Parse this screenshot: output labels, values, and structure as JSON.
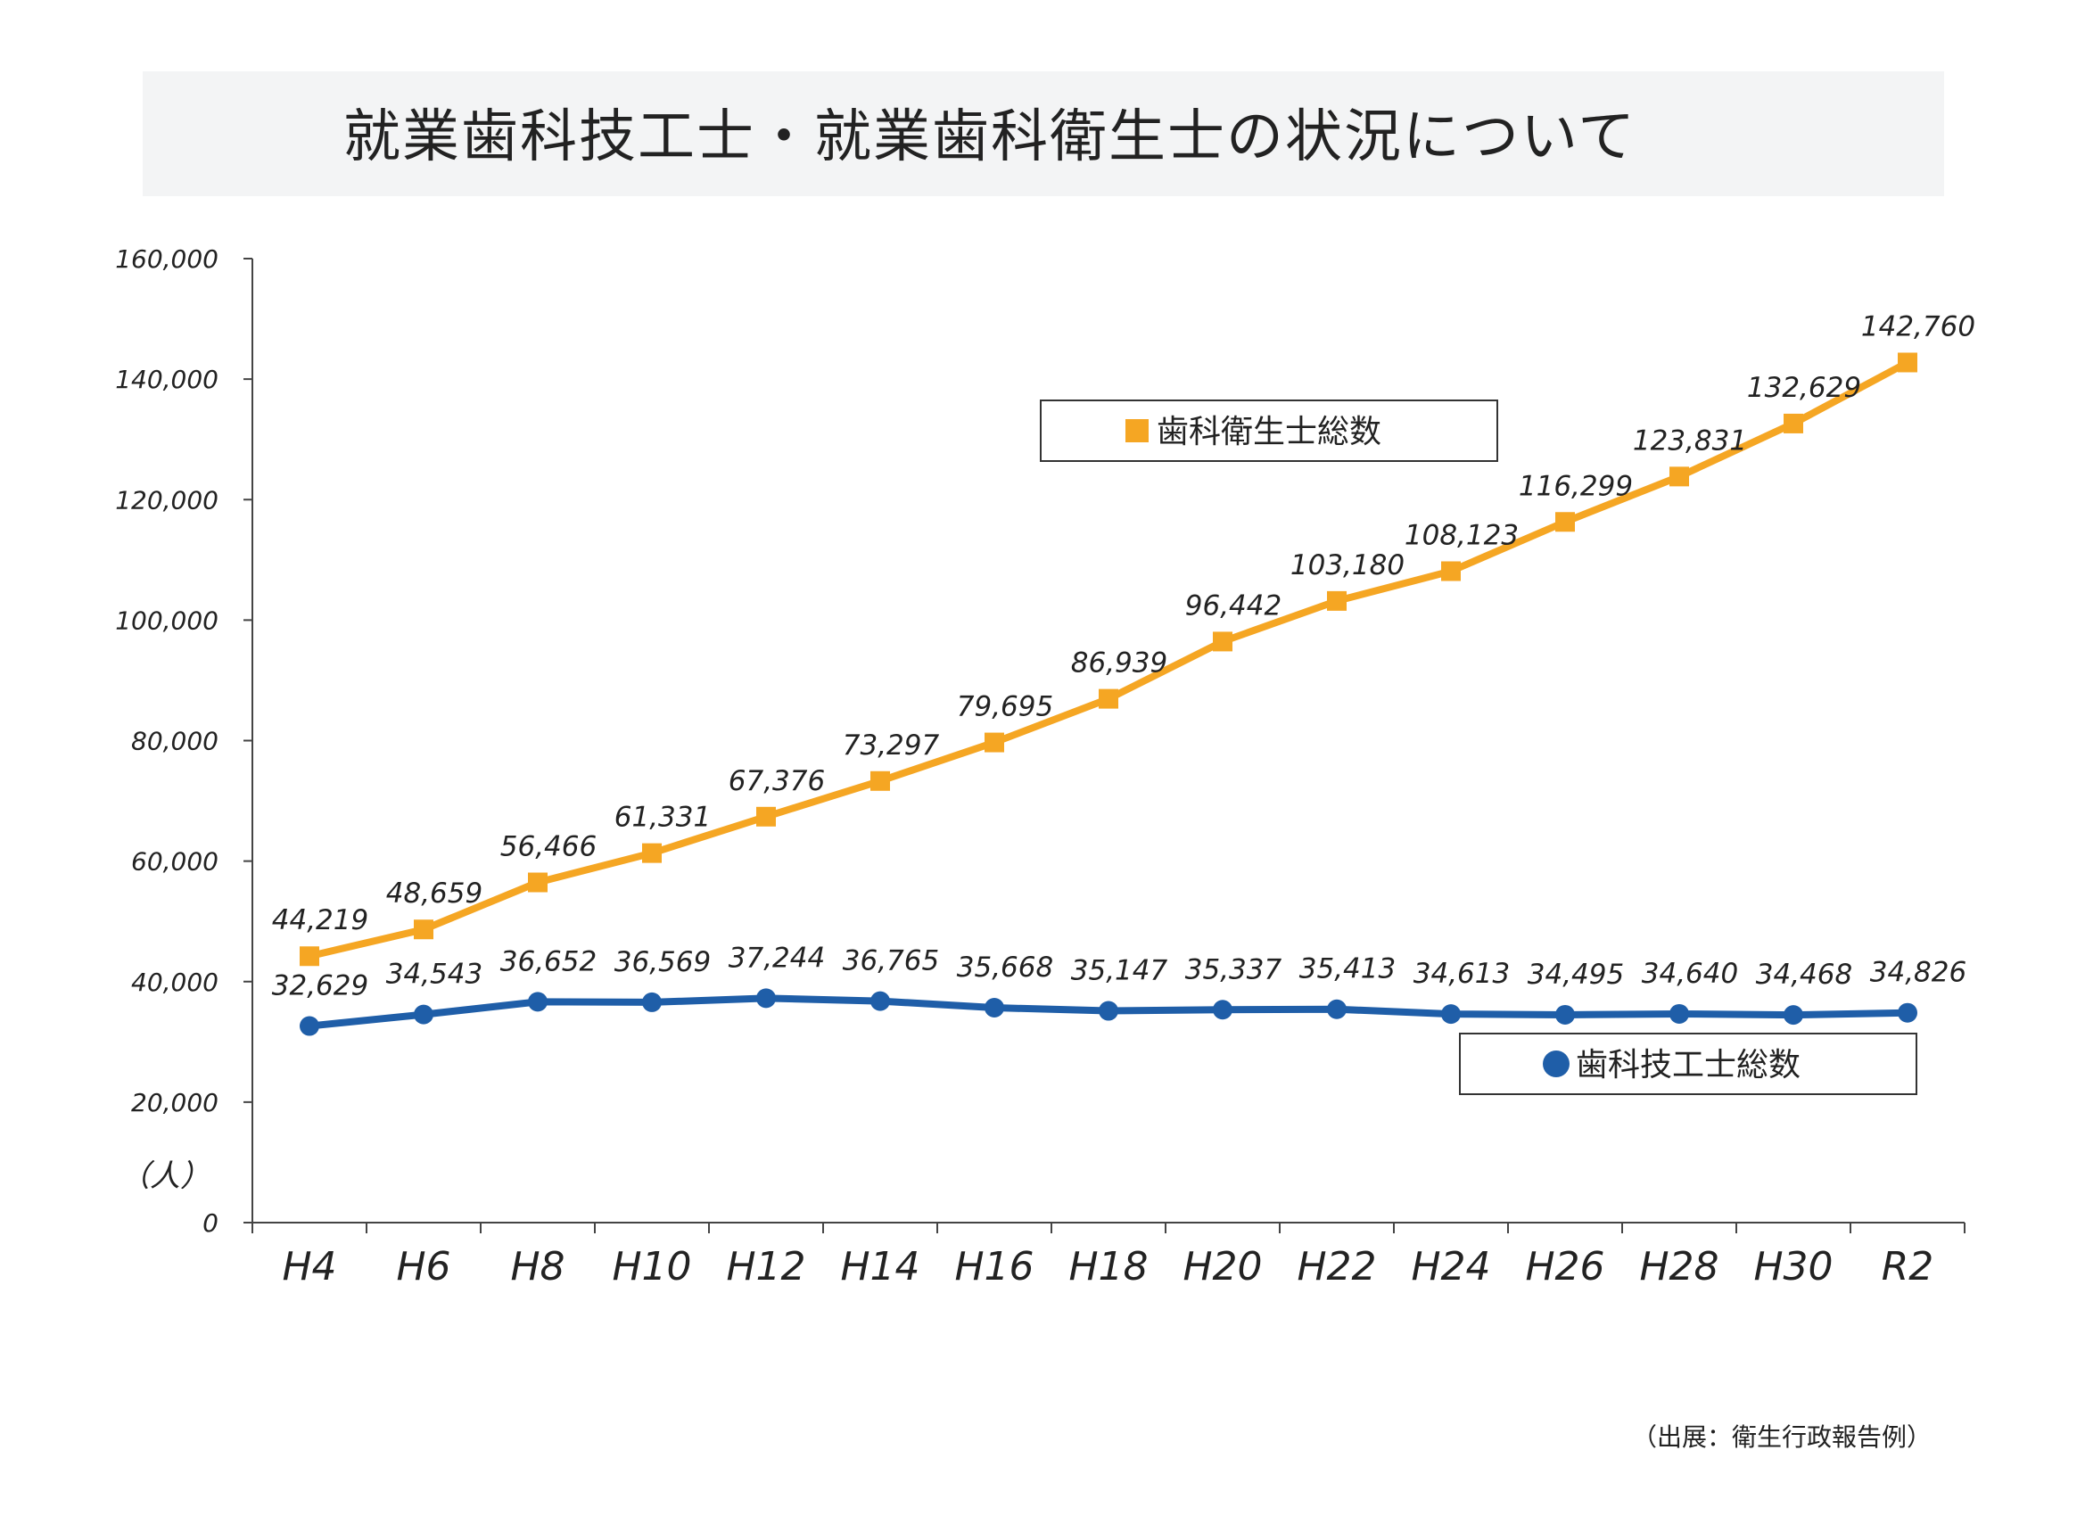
{
  "title": "就業歯科技工士・就業歯科衛生士の状況について",
  "source_note": "（出展：衛生行政報告例）",
  "chart_data": {
    "type": "line",
    "title": "就業歯科技工士・就業歯科衛生士の状況について",
    "xlabel": "",
    "ylabel": "（人）",
    "categories": [
      "H4",
      "H6",
      "H8",
      "H10",
      "H12",
      "H14",
      "H16",
      "H18",
      "H20",
      "H22",
      "H24",
      "H26",
      "H28",
      "H30",
      "R2"
    ],
    "ylim": [
      0,
      160000
    ],
    "yticks": [
      0,
      20000,
      40000,
      60000,
      80000,
      100000,
      120000,
      140000,
      160000
    ],
    "ytick_labels": [
      "0",
      "20,000",
      "40,000",
      "60,000",
      "80,000",
      "100,000",
      "120,000",
      "140,000",
      "160,000"
    ],
    "grid": false,
    "series": [
      {
        "name": "歯科衛生士総数",
        "marker": "square",
        "color": "#f5a623",
        "values": [
          44219,
          48659,
          56466,
          61331,
          67376,
          73297,
          79695,
          86939,
          96442,
          103180,
          108123,
          116299,
          123831,
          132629,
          142760
        ],
        "labels": [
          "44,219",
          "48,659",
          "56,466",
          "61,331",
          "67,376",
          "73,297",
          "79,695",
          "86,939",
          "96,442",
          "103,180",
          "108,123",
          "116,299",
          "123,831",
          "132,629",
          "142,760"
        ]
      },
      {
        "name": "歯科技工士総数",
        "marker": "circle",
        "color": "#1f5ea8",
        "values": [
          32629,
          34543,
          36652,
          36569,
          37244,
          36765,
          35668,
          35147,
          35337,
          35413,
          34613,
          34495,
          34640,
          34468,
          34826
        ],
        "labels": [
          "32,629",
          "34,543",
          "36,652",
          "36,569",
          "37,244",
          "36,765",
          "35,668",
          "35,147",
          "35,337",
          "35,413",
          "34,613",
          "34,495",
          "34,640",
          "34,468",
          "34,826"
        ]
      }
    ]
  }
}
